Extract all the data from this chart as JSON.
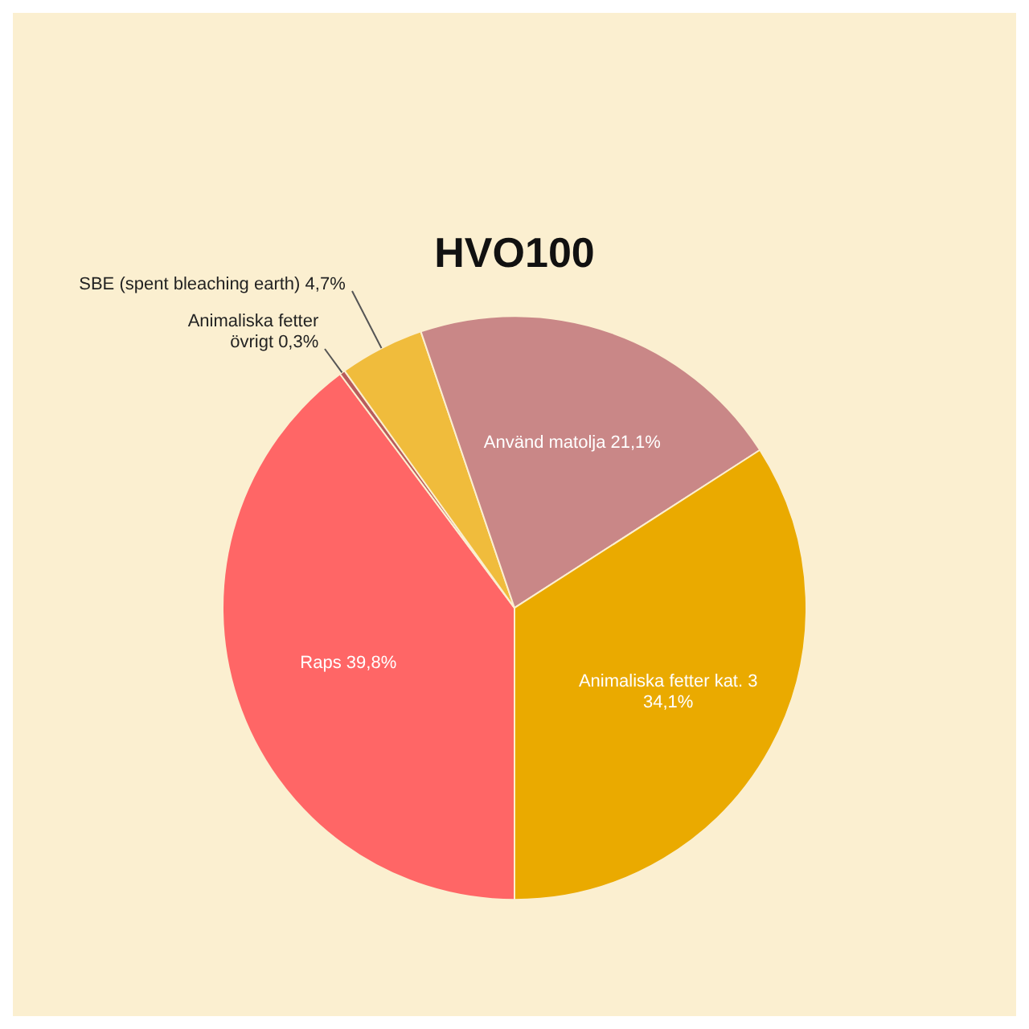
{
  "chart_data": {
    "type": "pie",
    "title": "HVO100",
    "categories": [
      "Raps",
      "Animaliska fetter övrigt",
      "SBE (spent bleaching earth)",
      "Använd matolja",
      "Animaliska fetter kat. 3"
    ],
    "values": [
      39.8,
      0.3,
      4.7,
      21.1,
      34.1
    ],
    "colors": [
      "#ff6666",
      "#b85c5c",
      "#f0bc3c",
      "#c98787",
      "#eaaa00"
    ],
    "value_labels": [
      "39,8%",
      "0,3%",
      "4,7%",
      "21,1%",
      "34,1%"
    ],
    "legend": false
  }
}
